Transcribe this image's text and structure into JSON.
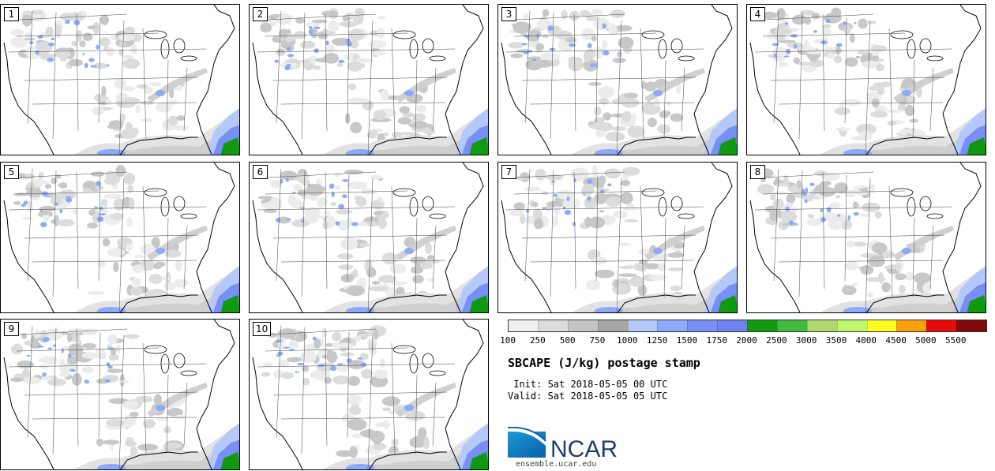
{
  "panels": [
    {
      "label": "1"
    },
    {
      "label": "2"
    },
    {
      "label": "3"
    },
    {
      "label": "4"
    },
    {
      "label": "5"
    },
    {
      "label": "6"
    },
    {
      "label": "7"
    },
    {
      "label": "8"
    },
    {
      "label": "9"
    },
    {
      "label": "10"
    }
  ],
  "colorbar": {
    "colors": [
      "#f0f0f0",
      "#dcdcdc",
      "#c4c4c4",
      "#a6a6a6",
      "#b4c8fa",
      "#8caaf8",
      "#7890f5",
      "#6e82f0",
      "#109a10",
      "#40bb40",
      "#b0d870",
      "#bff56c",
      "#fcfc20",
      "#fca010",
      "#e80a0a",
      "#820a0a"
    ],
    "labels": [
      "100",
      "250",
      "500",
      "750",
      "1000",
      "1250",
      "1500",
      "1750",
      "2000",
      "2500",
      "3000",
      "3500",
      "4000",
      "4500",
      "5000",
      "5500"
    ]
  },
  "title": "SBCAPE (J/kg) postage stamp",
  "init": " Init: Sat 2018-05-05 00 UTC",
  "valid": "Valid: Sat 2018-05-05 05 UTC",
  "logo": {
    "text": "NCAR",
    "url": "ensemble.ucar.edu"
  }
}
